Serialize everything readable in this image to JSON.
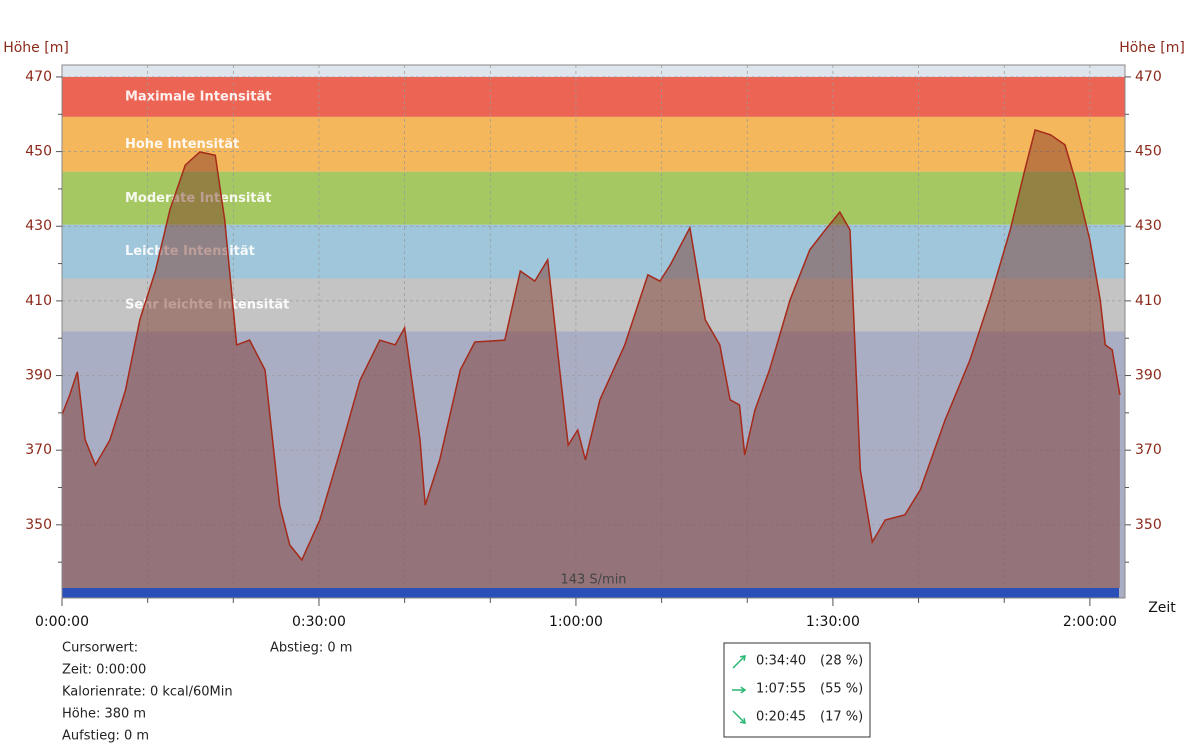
{
  "chart_data": {
    "type": "area",
    "ylabel": "Höhe [m]",
    "y2label": "Höhe [m]",
    "xlabel": "Zeit",
    "ylim": [
      330.4,
      473.2
    ],
    "yticks": [
      350,
      370,
      390,
      410,
      430,
      450,
      470
    ],
    "yminorticks": [
      340,
      360,
      380,
      400,
      420,
      440,
      460
    ],
    "xlim": [
      0,
      124.1
    ],
    "xticks": [
      {
        "value": 0,
        "label": "0:00:00"
      },
      {
        "value": 30,
        "label": "0:30:00"
      },
      {
        "value": 60,
        "label": "1:00:00"
      },
      {
        "value": 90,
        "label": "1:30:00"
      },
      {
        "value": 120,
        "label": "2:00:00"
      }
    ],
    "xminorticks": [
      10,
      20,
      40,
      50,
      70,
      80,
      100,
      110
    ],
    "grid": true,
    "plot_background": "#dfe5ec",
    "base_zone": {
      "color": "#a9aec4",
      "to": 401.8
    },
    "zones": [
      {
        "name": "Maximale Intensität",
        "color": "#ec6453",
        "from": 459.3,
        "to": 470
      },
      {
        "name": "Hohe Intensität",
        "color": "#f4b75c",
        "from": 444.6,
        "to": 459.3
      },
      {
        "name": "Moderate Intensität",
        "color": "#a6c862",
        "from": 430.4,
        "to": 444.6
      },
      {
        "name": "Leichte Intensität",
        "color": "#9fc6da",
        "from": 416,
        "to": 430.4
      },
      {
        "name": "Sehr leichte Intensität",
        "color": "#c4c4c4",
        "from": 401.8,
        "to": 416
      }
    ],
    "cadence_bar": {
      "label": "143 S/min",
      "color": "#2a4fb8"
    },
    "x": [
      0,
      0.9,
      1.8,
      2.7,
      3.9,
      5.6,
      7.4,
      9.1,
      10.9,
      12.6,
      14.4,
      16.1,
      17.9,
      19,
      20.4,
      21.9,
      23.7,
      25.4,
      26.6,
      28,
      30.1,
      32.5,
      34.8,
      37.1,
      38.9,
      40,
      41.8,
      42.4,
      44.1,
      46.5,
      48.2,
      51.7,
      53.5,
      55.2,
      56.7,
      58.1,
      59.1,
      60.2,
      61.1,
      62.8,
      65.7,
      68.4,
      69.8,
      71,
      73.3,
      75.1,
      76.8,
      78,
      79.1,
      79.7,
      80.9,
      82.6,
      85,
      87.3,
      89.1,
      90.8,
      92,
      93.2,
      94.6,
      96.1,
      98.4,
      100.2,
      103.1,
      106,
      108.3,
      110.7,
      112.4,
      113.6,
      115.4,
      117.1,
      118.3,
      120,
      121.2,
      121.8,
      122.6,
      123.5
    ],
    "series": [
      {
        "name": "Höhe",
        "color": "#a52a1a",
        "fill": "#7a2e22",
        "values": [
          379.5,
          384.8,
          391,
          372.8,
          366,
          372.8,
          386,
          405,
          418,
          434.4,
          446.4,
          449.9,
          449,
          431.7,
          398.2,
          399.5,
          391.5,
          355.3,
          344.6,
          340.6,
          351.3,
          370,
          388.8,
          399.5,
          398.2,
          402.8,
          372.8,
          355.3,
          367.4,
          391.5,
          399,
          399.5,
          418,
          415.3,
          421,
          391.5,
          371.4,
          375.4,
          367.4,
          383.5,
          398.2,
          417,
          415.3,
          419.6,
          429.6,
          404.9,
          398.2,
          383.5,
          382.1,
          368.7,
          380.8,
          391.5,
          410.3,
          423.7,
          429,
          433.8,
          429,
          364.7,
          345.4,
          351.3,
          352.7,
          359.4,
          378.1,
          394.2,
          410.3,
          429,
          445.1,
          455.8,
          454.5,
          451.8,
          442.4,
          426.3,
          410.3,
          398.2,
          396.9,
          384.8
        ]
      }
    ]
  },
  "info": [
    {
      "text": "Cursorwert:"
    },
    {
      "text": "Zeit: 0:00:00"
    },
    {
      "text": "Kalorienrate: 0 kcal/60Min",
      "color": "#c0392b"
    },
    {
      "text": "Höhe:  380 m",
      "color": "#8b2a1a"
    },
    {
      "text": "Aufstieg: 0 m"
    }
  ],
  "info_right": "Abstieg: 0 m",
  "summary": [
    {
      "direction": "up",
      "time": "0:34:40",
      "share": "(28 %)"
    },
    {
      "direction": "flat",
      "time": "1:07:55",
      "share": "(55 %)"
    },
    {
      "direction": "down",
      "time": "0:20:45",
      "share": "(17 %)"
    }
  ]
}
